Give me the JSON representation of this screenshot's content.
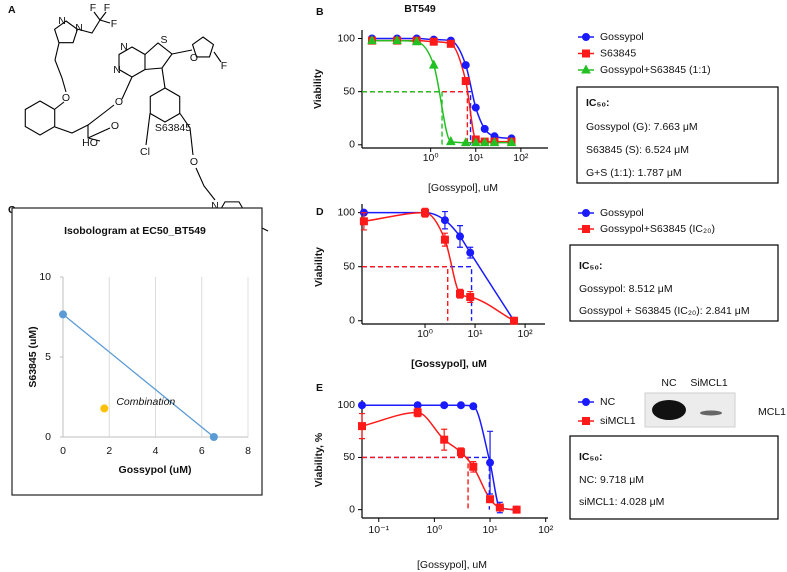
{
  "panel_labels": [
    "A",
    "B",
    "C",
    "D",
    "E"
  ],
  "structure": {
    "name": "S63845",
    "atoms": [
      "N",
      "N",
      "F",
      "F",
      "F",
      "N",
      "N",
      "S",
      "O",
      "F",
      "O",
      "O",
      "HO",
      "O",
      "Cl",
      "O",
      "N",
      "N"
    ]
  },
  "chart_data": [
    {
      "type": "line",
      "title": "BT549",
      "x_label": "[Gossypol], uM",
      "y_label": "Viability",
      "log_x": true,
      "x": [
        0.05,
        0.18,
        0.49,
        1.17,
        2.8,
        6,
        10,
        15.8,
        26,
        62
      ],
      "series": [
        {
          "name": "Gossypol",
          "color": "#1a1aff",
          "marker": "circle",
          "values": [
            100,
            100,
            100,
            99,
            98,
            75,
            35,
            15,
            8,
            6
          ],
          "ic50": 7.663
        },
        {
          "name": "S63845",
          "color": "#ff1a1a",
          "marker": "square",
          "values": [
            98,
            98,
            98,
            97,
            95,
            60,
            5,
            3,
            3,
            3
          ],
          "ic50": 6.524
        },
        {
          "name": "Gossypol+S63845 (1:1)",
          "color": "#22c022",
          "marker": "triangle",
          "values": [
            98,
            98,
            97,
            75,
            3,
            2,
            2,
            2,
            2,
            2
          ],
          "ic50": 1.787
        }
      ],
      "threshold": 50,
      "xlim": [
        0.03,
        400
      ],
      "ylim": [
        -3,
        108
      ],
      "xticks": [
        {
          "value": 1,
          "label": "10⁰"
        },
        {
          "value": 10,
          "label": "10¹"
        },
        {
          "value": 100,
          "label": "10²"
        }
      ],
      "yticks": [
        0,
        50,
        100
      ],
      "box": [
        "IC₅₀:",
        "Gossypol (G): 7.663 μM",
        "S63845 (S): 6.524 μM",
        "G+S (1:1): 1.787 μM"
      ]
    },
    {
      "type": "scatter",
      "title": "Isobologram at EC50_BT549",
      "x_label": "Gossypol (uM)",
      "y_label": "S63845 (uM)",
      "series": [
        {
          "color": "#5b9bd5",
          "x": [
            0,
            6.524
          ],
          "values": [
            7.663,
            0
          ],
          "line": true
        },
        {
          "name": "Combination",
          "color": "#ffc000",
          "x": [
            1.787
          ],
          "values": [
            1.787
          ],
          "line": false
        }
      ],
      "xlim": [
        0,
        8
      ],
      "ylim": [
        0,
        10
      ],
      "xticks": [
        0,
        2,
        4,
        6,
        8
      ],
      "yticks": [
        0,
        5,
        10
      ],
      "grid": "x"
    },
    {
      "type": "line",
      "x_label": "[Gossypol], uM",
      "y_label": "Viability",
      "log_x": true,
      "x": [
        0.06,
        1,
        2.5,
        5,
        8,
        60
      ],
      "series": [
        {
          "name": "Gossypol",
          "color": "#1a1aff",
          "marker": "circle",
          "values": [
            100,
            100,
            93,
            78,
            63,
            0
          ],
          "errors": [
            null,
            null,
            8,
            10,
            5,
            null
          ],
          "ic50": 8.512
        },
        {
          "name": "Gossypol+S63845 (IC₂₀)",
          "color": "#ff1a1a",
          "marker": "square",
          "values": [
            92,
            100,
            75,
            25,
            22,
            0
          ],
          "errors": [
            8,
            4,
            6,
            4,
            5,
            null
          ],
          "ic50": 2.841
        }
      ],
      "threshold": 50,
      "xlim": [
        0.055,
        250
      ],
      "ylim": [
        -3,
        108
      ],
      "xticks": [
        {
          "value": 1,
          "label": "10⁰"
        },
        {
          "value": 10,
          "label": "10¹"
        },
        {
          "value": 100,
          "label": "10²"
        }
      ],
      "yticks": [
        0,
        50,
        100
      ],
      "box": [
        "IC₅₀:",
        "Gossypol: 8.512 μM",
        "Gossypol + S63845 (IC₂₀): 2.841 μM"
      ]
    },
    {
      "type": "line",
      "x_label": "[Gossypol], uM",
      "y_label": "Viability, %",
      "log_x": true,
      "x": [
        0.05,
        0.5,
        1.5,
        3,
        5,
        10,
        15,
        30
      ],
      "series": [
        {
          "name": "NC",
          "color": "#1a1aff",
          "marker": "circle",
          "values": [
            100,
            100,
            100,
            100,
            99,
            45,
            2,
            0
          ],
          "errors": [
            null,
            null,
            null,
            null,
            null,
            30,
            5,
            null
          ],
          "ic50": 9.718
        },
        {
          "name": "siMCL1",
          "color": "#ff1a1a",
          "marker": "square",
          "values": [
            80,
            93,
            67,
            55,
            41,
            10,
            2,
            0
          ],
          "errors": [
            12,
            4,
            10,
            4,
            5,
            3,
            2,
            null
          ],
          "ic50": 4.028
        }
      ],
      "threshold": 50,
      "xlim": [
        0.05,
        110
      ],
      "ylim": [
        -8,
        105
      ],
      "xticks": [
        {
          "value": 0.1,
          "label": "10⁻¹"
        },
        {
          "value": 1,
          "label": "10⁰"
        },
        {
          "value": 10,
          "label": "10¹"
        },
        {
          "value": 100,
          "label": "10²"
        }
      ],
      "yticks": [
        0,
        50,
        100
      ],
      "box": [
        "IC₅₀:",
        "NC: 9.718 μM",
        "siMCL1: 4.028 μM"
      ],
      "blot_labels": [
        "NC",
        "SiMCL1"
      ],
      "blot_target": "MCL1"
    }
  ]
}
